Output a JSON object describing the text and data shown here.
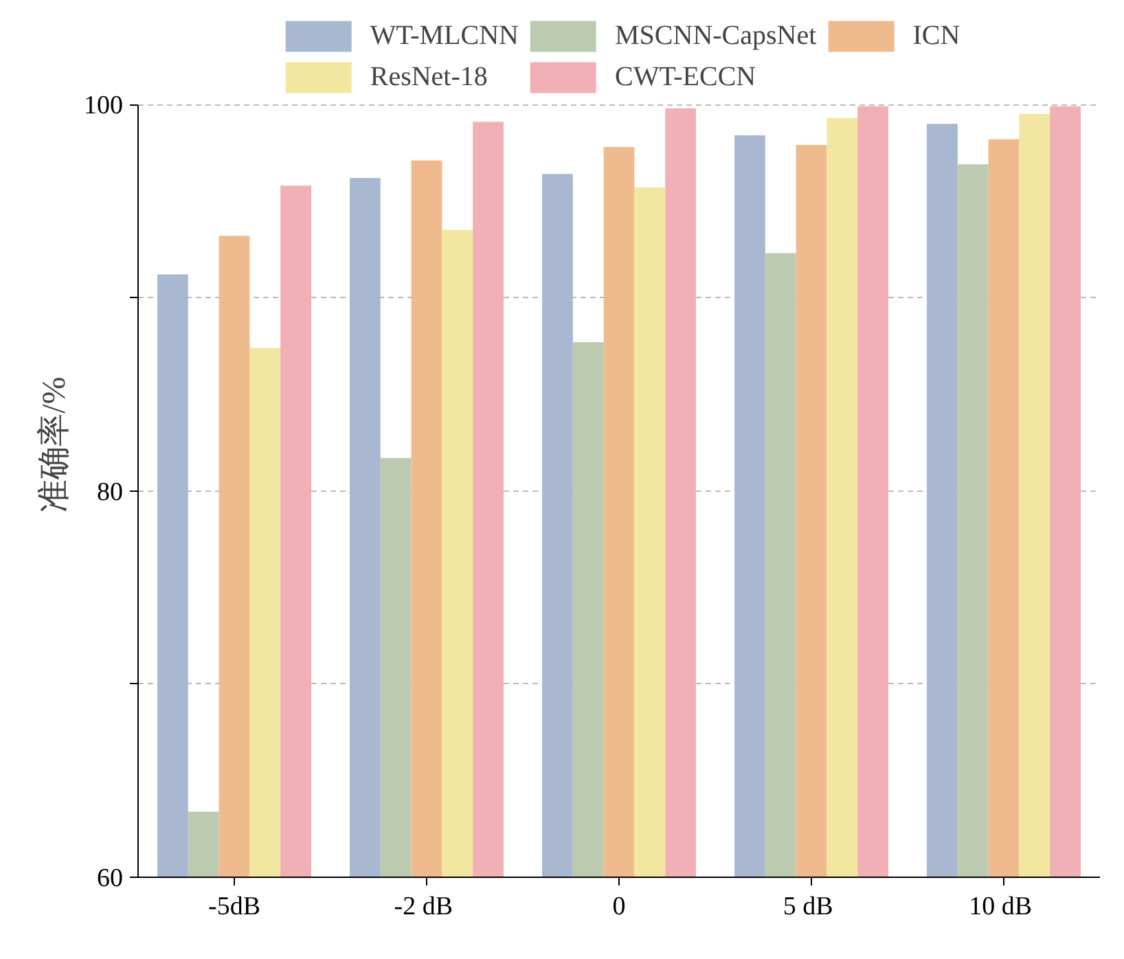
{
  "chart_data": {
    "type": "bar",
    "ylabel": "准确率/%",
    "categories": [
      "-5dB",
      "-2  dB",
      "0",
      "5  dB",
      "10  dB"
    ],
    "series": [
      {
        "name": "WT-MLCNN",
        "color": "#a9b8d1",
        "values": [
          91.2,
          96.2,
          96.4,
          98.4,
          99.0
        ]
      },
      {
        "name": "MSCNN-CapsNet",
        "color": "#bccbb0",
        "values": [
          63.4,
          81.7,
          87.7,
          92.3,
          96.9
        ]
      },
      {
        "name": "ICN",
        "color": "#efbb8e",
        "values": [
          93.2,
          97.1,
          97.8,
          97.9,
          98.2
        ]
      },
      {
        "name": "ResNet-18",
        "color": "#f2e6a0",
        "values": [
          87.4,
          93.5,
          95.7,
          99.3,
          99.5
        ]
      },
      {
        "name": "CWT-ECCN",
        "color": "#f0b0b5",
        "values": [
          95.8,
          99.1,
          99.8,
          99.9,
          99.9
        ]
      }
    ],
    "ylim": [
      60,
      100
    ],
    "yticks": [
      60,
      {
        "value": 70,
        "label": null
      },
      80,
      {
        "value": 90,
        "label": null
      },
      100
    ],
    "grid": "y",
    "legend": "top"
  }
}
